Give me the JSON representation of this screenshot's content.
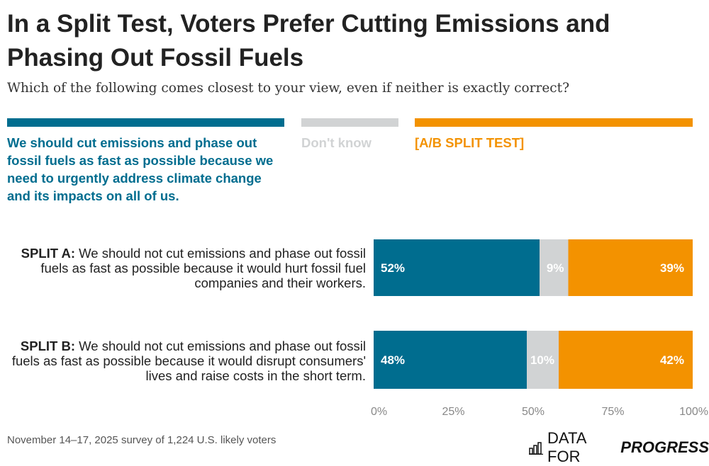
{
  "title": "In a Split Test, Voters Prefer Cutting Emissions and Phasing Out Fossil Fuels",
  "subtitle": "Which of the following comes closest to your view, even if neither is exactly correct?",
  "colors": {
    "cut": "#006d8f",
    "dontknow": "#d1d3d4",
    "split": "#f39200"
  },
  "chart_data": {
    "type": "bar",
    "orientation": "horizontal",
    "stacked": true,
    "categories": [
      "SPLIT A: We should not cut emissions and phase out fossil fuels as fast as possible because it would hurt fossil fuel companies and their workers.",
      "SPLIT B: We should not cut emissions and phase out fossil fuels as fast as possible because it would disrupt consumers' lives and raise costs in the short term."
    ],
    "category_prefixes": [
      "SPLIT A:",
      "SPLIT B:"
    ],
    "category_texts": [
      " We should not cut emissions and phase out fossil fuels as fast as possible because it would hurt fossil fuel companies and their workers.",
      " We should not cut emissions and phase out fossil fuels as fast as possible because it would disrupt consumers' lives and raise costs in the short term."
    ],
    "series": [
      {
        "name": "We should cut emissions and phase out fossil fuels as fast as possible because we need to urgently address climate change and its impacts on all of us.",
        "values": [
          52,
          48
        ],
        "labels": [
          "52%",
          "48%"
        ]
      },
      {
        "name": "Don't know",
        "values": [
          9,
          10
        ],
        "labels": [
          "9%",
          "10%"
        ]
      },
      {
        "name": "[A/B SPLIT TEST]",
        "values": [
          39,
          42
        ],
        "labels": [
          "39%",
          "42%"
        ]
      }
    ],
    "xlim": [
      0,
      100
    ],
    "xticks": [
      "0%",
      "25%",
      "50%",
      "75%",
      "100%"
    ],
    "legend": "top"
  },
  "footer": "November 14–17, 2025 survey of 1,224 U.S. likely voters",
  "logo": {
    "text1": "DATA FOR",
    "text2": "PROGRESS"
  }
}
